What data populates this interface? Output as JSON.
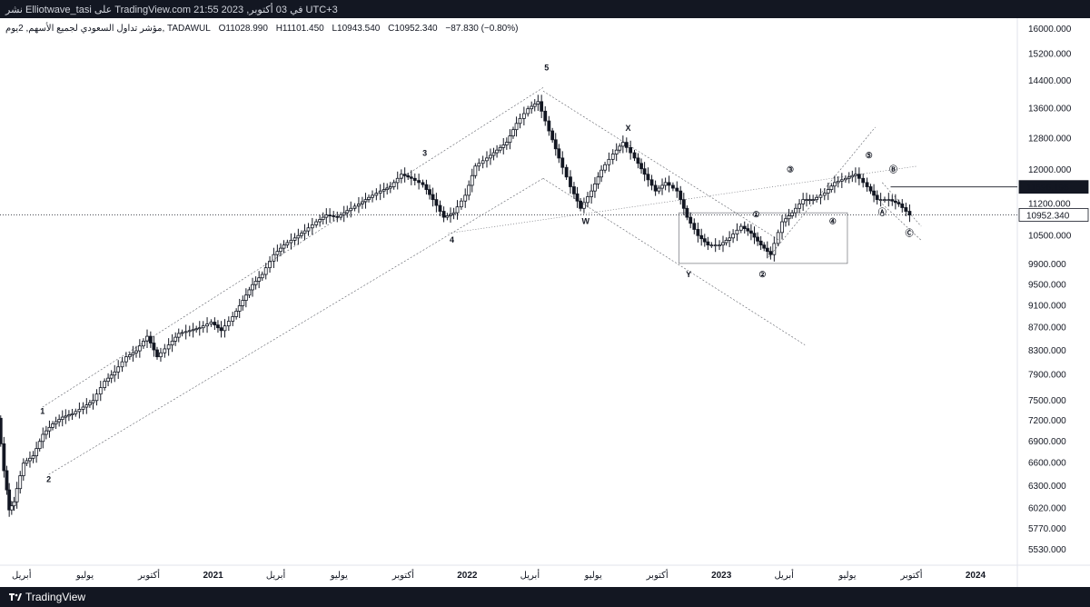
{
  "header": {
    "publish_line": "نشر Elliotwave_tasi على TradingView.com في 03 أكتوبر, 2023 21:55 UTC+3"
  },
  "legend": {
    "symbol": "مؤشر تداول السعودي لجميع الأسهم, 2يوم, TADAWUL",
    "open": "O11028.990",
    "high": "H11101.450",
    "low": "L10943.540",
    "close": "C10952.340",
    "change": "−87.830 (−0.80%)"
  },
  "footer": {
    "brand": "TradingView"
  },
  "chart_data": {
    "type": "candlestick",
    "price_axis": {
      "ticks": [
        "16000.000",
        "15200.000",
        "14400.000",
        "13600.000",
        "12800.000",
        "12000.000",
        "11200.000",
        "10500.000",
        "9900.000",
        "9500.000",
        "9100.000",
        "8700.000",
        "8300.000",
        "7900.000",
        "7500.000",
        "7200.000",
        "6900.000",
        "6600.000",
        "6300.000",
        "6020.000",
        "5770.000",
        "5530.000"
      ],
      "scale": "log",
      "range": [
        5400,
        16300
      ]
    },
    "time_axis": {
      "labels": [
        "أبريل",
        "يوليو",
        "أكتوبر",
        "2021",
        "أبريل",
        "يوليو",
        "أكتوبر",
        "2022",
        "أبريل",
        "يوليو",
        "أكتوبر",
        "2023",
        "أبريل",
        "يوليو",
        "أكتوبر",
        "2024"
      ],
      "range": [
        "2020-03",
        "2024-03"
      ]
    },
    "price_labels": [
      {
        "value": 11596.195,
        "text": "11596.195",
        "style": "dark"
      },
      {
        "value": 10952.34,
        "text": "10952.340",
        "style": "light"
      }
    ],
    "series": [
      {
        "x": [
          "2020-02-10",
          "2020-02-24",
          "2020-03-09",
          "2020-03-16",
          "2020-03-23",
          "2020-04-06",
          "2020-04-20",
          "2020-05-04",
          "2020-05-18",
          "2020-06-01",
          "2020-06-15",
          "2020-07-01",
          "2020-07-15",
          "2020-08-01",
          "2020-08-15",
          "2020-09-01",
          "2020-09-15",
          "2020-10-01",
          "2020-10-15",
          "2020-11-01",
          "2020-11-15",
          "2020-12-01",
          "2020-12-15",
          "2021-01-01",
          "2021-01-15",
          "2021-02-01",
          "2021-02-15",
          "2021-03-01",
          "2021-03-15",
          "2021-04-01",
          "2021-04-15",
          "2021-05-01",
          "2021-05-15",
          "2021-06-01",
          "2021-06-15",
          "2021-07-01",
          "2021-07-15",
          "2021-08-01",
          "2021-08-15",
          "2021-09-01",
          "2021-09-15",
          "2021-10-01",
          "2021-10-15",
          "2021-11-01",
          "2021-11-15",
          "2021-12-01",
          "2021-12-15",
          "2022-01-01",
          "2022-01-15",
          "2022-02-01",
          "2022-02-15",
          "2022-03-01",
          "2022-03-15",
          "2022-04-01",
          "2022-04-15",
          "2022-05-01",
          "2022-05-15",
          "2022-06-01",
          "2022-06-15",
          "2022-07-01",
          "2022-07-15",
          "2022-08-01",
          "2022-08-15",
          "2022-09-01",
          "2022-09-15",
          "2022-10-01",
          "2022-10-15",
          "2022-11-01",
          "2022-11-15",
          "2022-12-01",
          "2022-12-15",
          "2023-01-01",
          "2023-01-15",
          "2023-02-01",
          "2023-02-15",
          "2023-03-01",
          "2023-03-15",
          "2023-04-01",
          "2023-04-15",
          "2023-05-01",
          "2023-05-15",
          "2023-06-01",
          "2023-06-15",
          "2023-07-01",
          "2023-07-15",
          "2023-08-01",
          "2023-08-15",
          "2023-09-01",
          "2023-09-15",
          "2023-10-01"
        ],
        "y": [
          7900,
          7600,
          6500,
          6000,
          6100,
          6600,
          6700,
          7000,
          7150,
          7250,
          7300,
          7400,
          7500,
          7800,
          7950,
          8200,
          8300,
          8550,
          8200,
          8400,
          8600,
          8650,
          8700,
          8800,
          8650,
          8900,
          9200,
          9500,
          9700,
          10100,
          10300,
          10450,
          10600,
          10800,
          10950,
          10900,
          11050,
          11200,
          11350,
          11500,
          11600,
          11900,
          11800,
          11650,
          11300,
          10900,
          11000,
          11400,
          12100,
          12300,
          12500,
          12700,
          13200,
          13600,
          13800,
          13000,
          12300,
          11600,
          11100,
          11500,
          12000,
          12400,
          12700,
          12300,
          11900,
          11500,
          11700,
          11500,
          10900,
          10500,
          10300,
          10300,
          10450,
          10700,
          10550,
          10300,
          10100,
          10800,
          11000,
          11300,
          11300,
          11450,
          11700,
          11800,
          11900,
          11600,
          11300,
          11300,
          11200,
          10950
        ]
      }
    ],
    "wave_labels": [
      {
        "text": "1",
        "x": "2020-05-01",
        "y": 7300
      },
      {
        "text": "2",
        "x": "2020-05-10",
        "y": 6350
      },
      {
        "text": "3",
        "x": "2021-11-01",
        "y": 12350
      },
      {
        "text": "4",
        "x": "2021-12-10",
        "y": 10350
      },
      {
        "text": "5",
        "x": "2022-04-25",
        "y": 14700
      },
      {
        "text": "X",
        "x": "2022-08-20",
        "y": 13000
      },
      {
        "text": "W",
        "x": "2022-06-20",
        "y": 10750
      },
      {
        "text": "Y",
        "x": "2022-11-15",
        "y": 9650
      },
      {
        "text": "①",
        "x": "2023-02-20",
        "y": 10900
      },
      {
        "text": "②",
        "x": "2023-03-01",
        "y": 9650
      },
      {
        "text": "③",
        "x": "2023-04-10",
        "y": 11950
      },
      {
        "text": "④",
        "x": "2023-06-10",
        "y": 10750
      },
      {
        "text": "⑤",
        "x": "2023-08-01",
        "y": 12300
      },
      {
        "text": "Ⓐ",
        "x": "2023-08-20",
        "y": 10950
      },
      {
        "text": "Ⓑ",
        "x": "2023-09-05",
        "y": 11950
      },
      {
        "text": "Ⓒ",
        "x": "2023-09-28",
        "y": 10500
      }
    ]
  }
}
